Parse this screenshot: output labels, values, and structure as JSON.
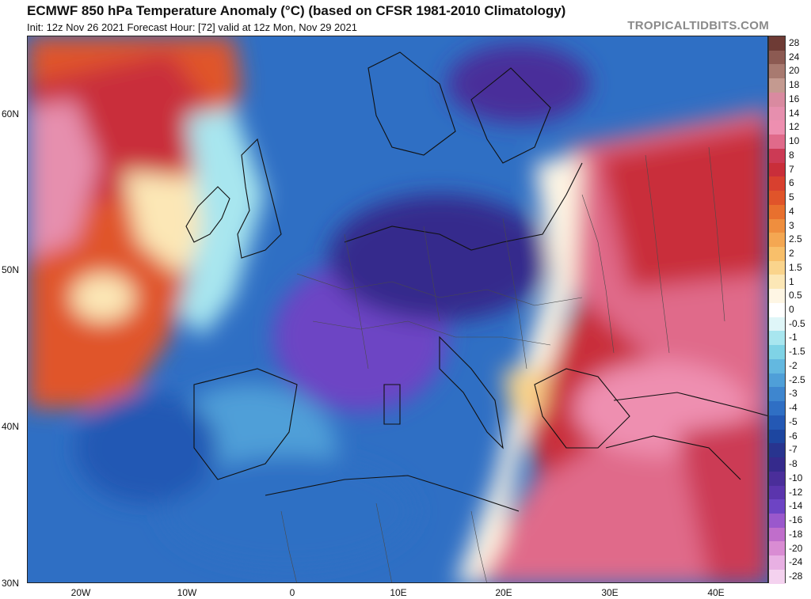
{
  "header": {
    "title": "ECMWF 850 hPa Temperature Anomaly (°C) (based on CFSR 1981-2010 Climatology)",
    "subtitle": "Init: 12z Nov 26 2021   Forecast Hour: [72]   valid at 12z Mon, Nov 29 2021",
    "brand": "TROPICALTIDBITS.COM"
  },
  "axes": {
    "lat_labels": [
      "60N",
      "50N",
      "40N",
      "30N"
    ],
    "lon_labels": [
      "20W",
      "10W",
      "0",
      "10E",
      "20E",
      "30E",
      "40E"
    ]
  },
  "legend": {
    "labels": [
      "28",
      "24",
      "20",
      "18",
      "16",
      "14",
      "12",
      "10",
      "8",
      "7",
      "6",
      "5",
      "4",
      "3",
      "2.5",
      "2",
      "1.5",
      "1",
      "0.5",
      "0",
      "-0.5",
      "-1",
      "-1.5",
      "-2",
      "-2.5",
      "-3",
      "-4",
      "-5",
      "-6",
      "-7",
      "-8",
      "-10",
      "-12",
      "-14",
      "-16",
      "-18",
      "-20",
      "-24",
      "-28"
    ],
    "colors": [
      "#6e3b35",
      "#8c5a52",
      "#a87a70",
      "#c49a90",
      "#d98aa0",
      "#e68fae",
      "#ee8fb0",
      "#e06a8a",
      "#cc3a55",
      "#c92e3a",
      "#d8402f",
      "#e0542a",
      "#e8702e",
      "#ef8e3e",
      "#f4a752",
      "#f8bf6a",
      "#fad48c",
      "#fce7b6",
      "#fef6e4",
      "#ffffff",
      "#dff6f8",
      "#a8e6ef",
      "#7fd3e6",
      "#63b8e0",
      "#4f9fd8",
      "#3e86cf",
      "#2f6fc4",
      "#2458b4",
      "#1d46a0",
      "#28348f",
      "#352a8c",
      "#4a2e9a",
      "#5b35ad",
      "#6d44c4",
      "#9a58cc",
      "#c06ecb",
      "#d98cd3",
      "#e8b0e3",
      "#f4d2ef"
    ]
  },
  "map": {
    "colors": {
      "ocean_land_border": "#111111",
      "country_border": "#4a4a4a"
    }
  }
}
